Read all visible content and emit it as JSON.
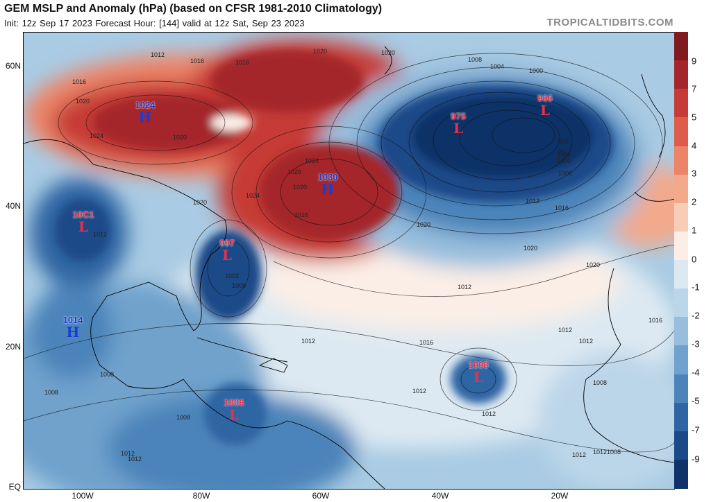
{
  "header": {
    "title": "GEM MSLP and Anomaly (hPa) (based on CFSR 1981-2010 Climatology)",
    "subtitle": "Init: 12z Sep 17 2023   Forecast Hour: [144]   valid at 12z Sat, Sep 23 2023",
    "credit": "TROPICALTIDBITS.COM"
  },
  "axes": {
    "lat_labels": [
      "60N",
      "40N",
      "20N",
      "EQ"
    ],
    "lon_labels": [
      "100W",
      "80W",
      "60W",
      "40W",
      "20W"
    ]
  },
  "colorbar": {
    "ticks": [
      "9",
      "7",
      "5",
      "4",
      "3",
      "2",
      "1",
      "0",
      "-1",
      "-2",
      "-3",
      "-4",
      "-5",
      "-7",
      "-9"
    ],
    "colors": [
      "#7f1a1f",
      "#a4262b",
      "#c63b35",
      "#dd5d4a",
      "#ec8468",
      "#f3a98b",
      "#f8cdb8",
      "#fbeee6",
      "#dde9f2",
      "#bcd6e9",
      "#97bedd",
      "#6fa2cc",
      "#4c84ba",
      "#2f65a3",
      "#1c4a88",
      "#0f3268"
    ]
  },
  "pressure_centers": [
    {
      "type": "H",
      "value": "1024",
      "color": "#1a3cd6"
    },
    {
      "type": "H",
      "value": "1030",
      "color": "#1a3cd6"
    },
    {
      "type": "L",
      "value": "975",
      "color": "#e8304a"
    },
    {
      "type": "L",
      "value": "966",
      "color": "#e8304a"
    },
    {
      "type": "L",
      "value": "10C1",
      "color": "#e8304a"
    },
    {
      "type": "L",
      "value": "997",
      "color": "#e8304a"
    },
    {
      "type": "H",
      "value": "1014",
      "color": "#1a3cd6"
    },
    {
      "type": "L",
      "value": "1008",
      "color": "#e8304a"
    },
    {
      "type": "L",
      "value": "1006",
      "color": "#e8304a"
    }
  ],
  "isobar_labels": [
    "1012",
    "1016",
    "1020",
    "1020",
    "1016",
    "1016",
    "1020",
    "1024",
    "1020",
    "1024",
    "1026",
    "1020",
    "1024",
    "1020",
    "1016",
    "1008",
    "1004",
    "1000",
    "992",
    "996",
    "1000",
    "1004",
    "1008",
    "1012",
    "1016",
    "1020",
    "1020",
    "1020",
    "1012",
    "1012",
    "1003",
    "1008",
    "1012",
    "1016",
    "1016",
    "1012",
    "1012",
    "1008",
    "1008",
    "1008",
    "1008",
    "1012",
    "1012",
    "1012",
    "1012",
    "1008",
    "1012",
    "1012"
  ]
}
